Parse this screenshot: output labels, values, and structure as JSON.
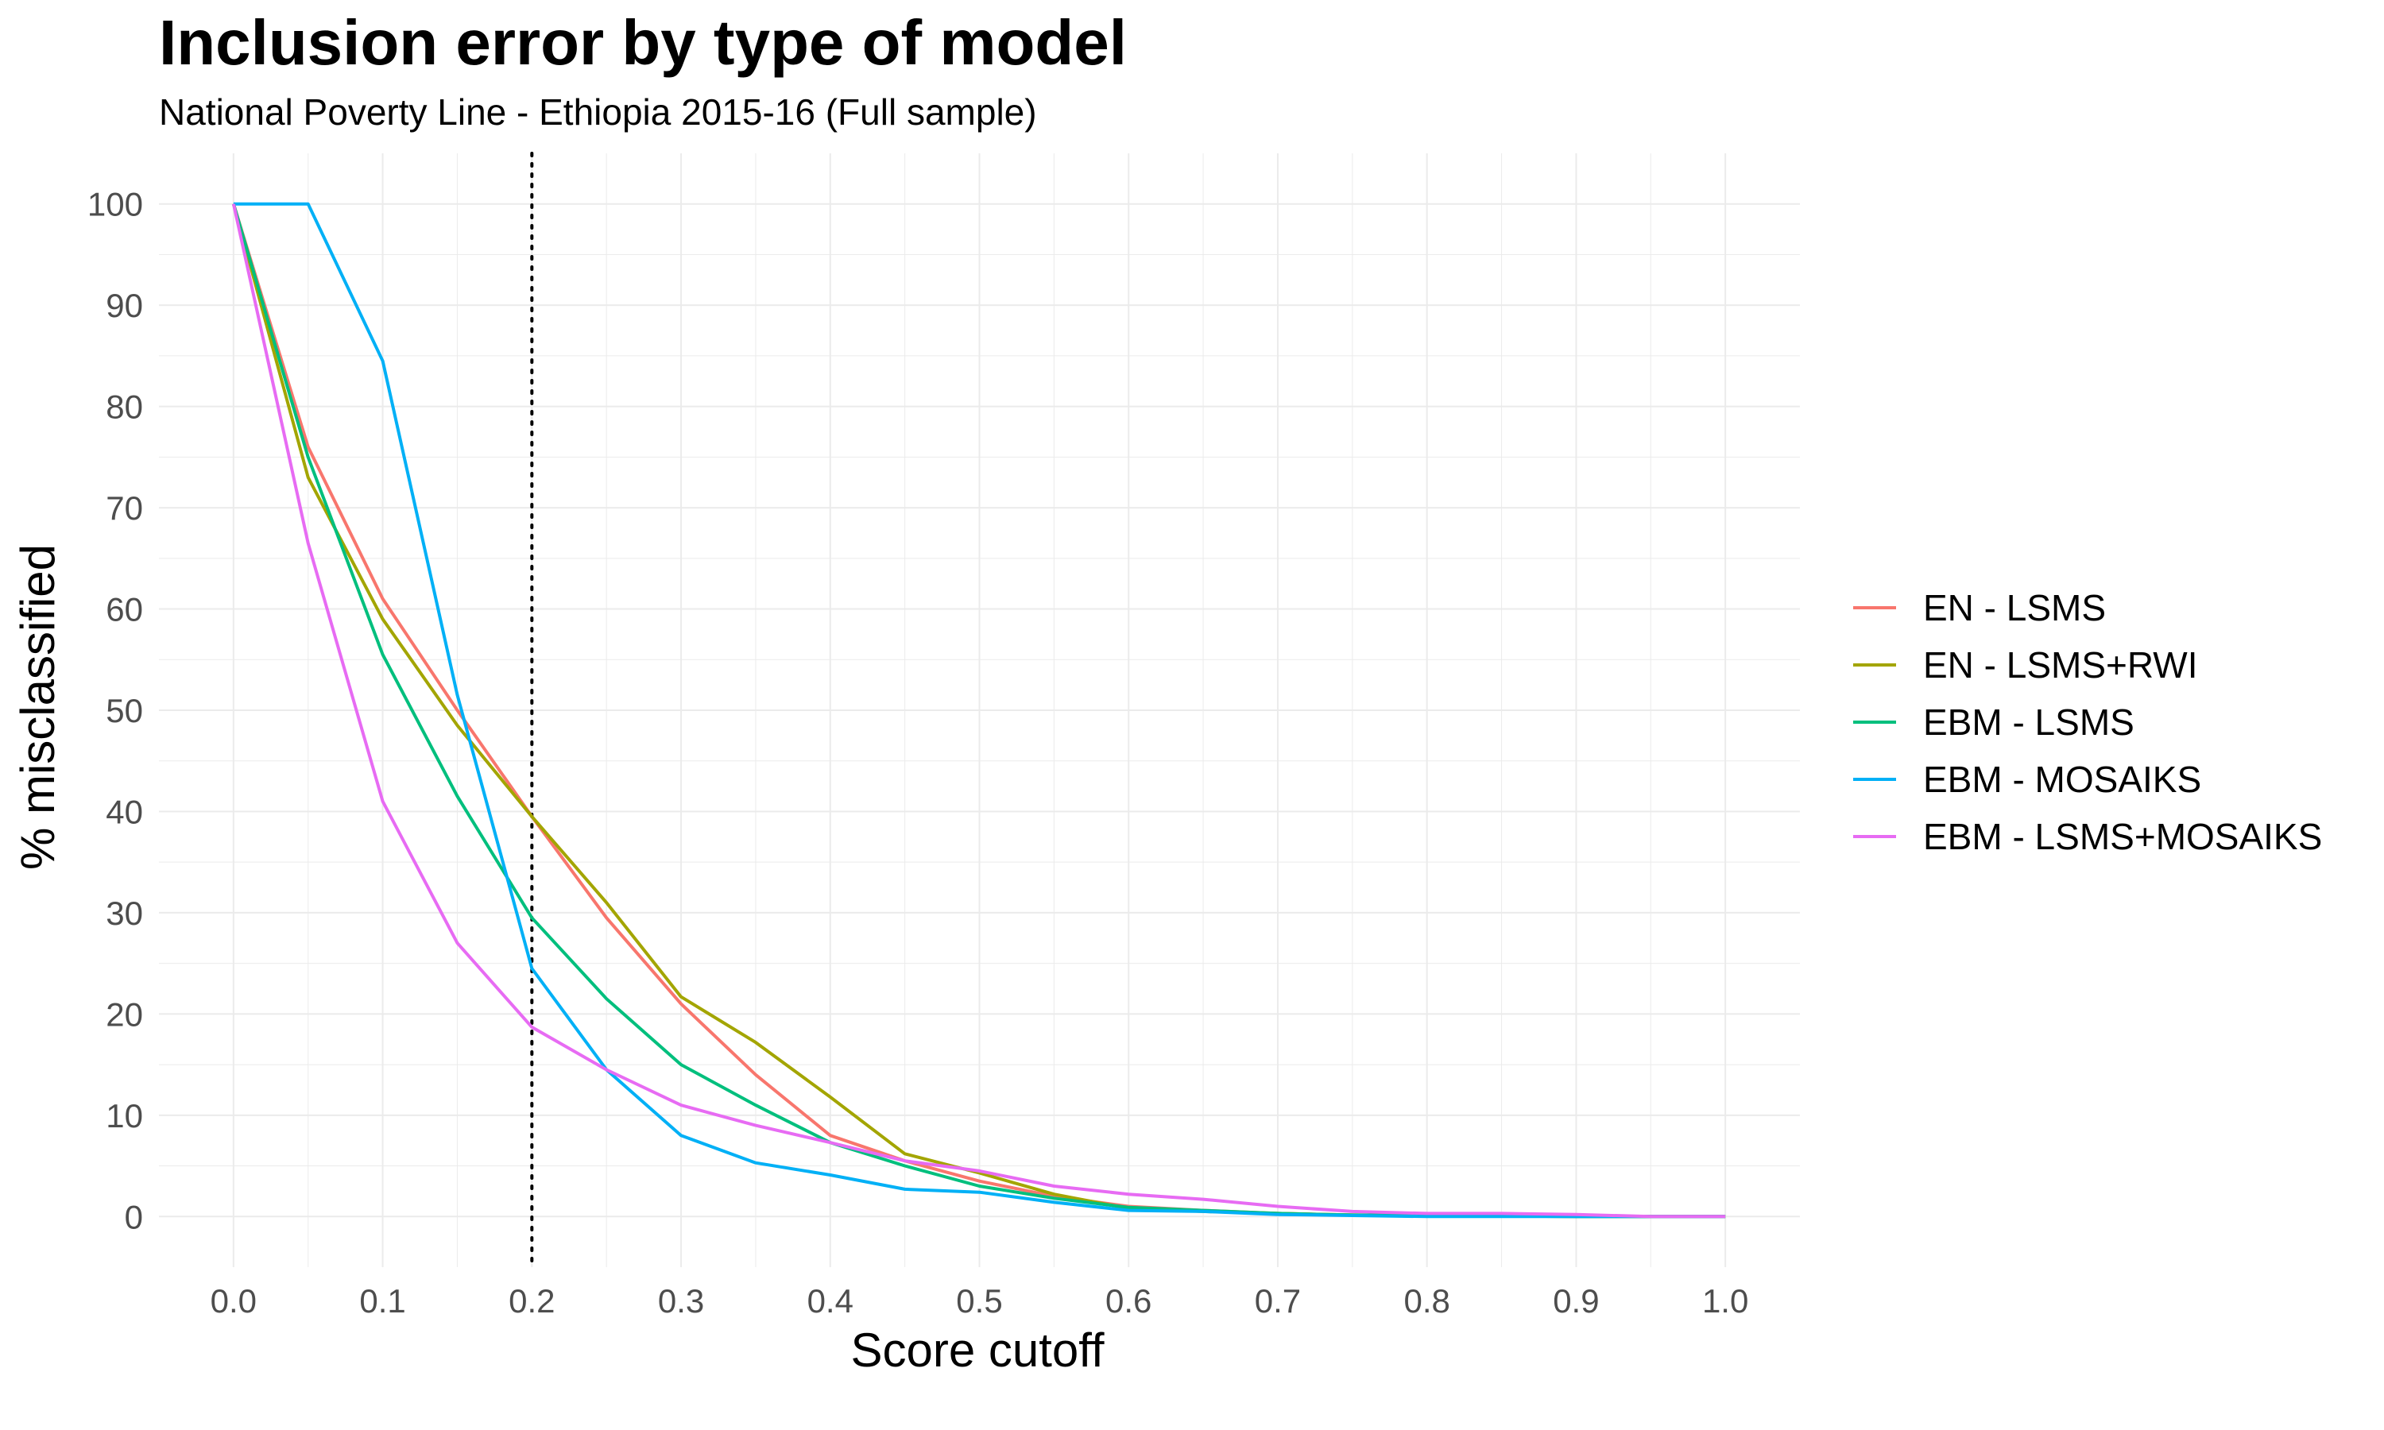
{
  "chart_data": {
    "type": "line",
    "title": "Inclusion error by type of model",
    "subtitle": "National Poverty Line - Ethiopia 2015-16 (Full sample)",
    "xlabel": "Score cutoff",
    "ylabel": "% misclassified",
    "xlim": [
      -0.05,
      1.05
    ],
    "ylim": [
      -5,
      105
    ],
    "x_ticks": [
      "0.0",
      "0.1",
      "0.2",
      "0.3",
      "0.4",
      "0.5",
      "0.6",
      "0.7",
      "0.8",
      "0.9",
      "1.0"
    ],
    "y_ticks": [
      "0",
      "10",
      "20",
      "30",
      "40",
      "50",
      "60",
      "70",
      "80",
      "90",
      "100"
    ],
    "grid": true,
    "legend_position": "right",
    "reference_line": {
      "x": 0.2,
      "style": "dotted"
    },
    "x": [
      0.0,
      0.05,
      0.1,
      0.15,
      0.2,
      0.25,
      0.3,
      0.35,
      0.4,
      0.45,
      0.5,
      0.55,
      0.6,
      0.65,
      0.7,
      0.75,
      0.8,
      0.85,
      0.9,
      0.95,
      1.0
    ],
    "series": [
      {
        "name": "EN - LSMS",
        "color": "#F8766D",
        "values": [
          100,
          76,
          61,
          50,
          39.5,
          29.5,
          21,
          14,
          8,
          5.5,
          3.5,
          2,
          1,
          0.6,
          0.3,
          0.15,
          0.1,
          0.05,
          0,
          0,
          0
        ]
      },
      {
        "name": "EN - LSMS+RWI",
        "color": "#A3A500",
        "values": [
          100,
          73,
          59,
          48.5,
          39.5,
          31,
          21.7,
          17.2,
          11.8,
          6.2,
          4.3,
          2.2,
          0.8,
          0.5,
          0.3,
          0.15,
          0.1,
          0.05,
          0,
          0,
          0
        ]
      },
      {
        "name": "EBM - LSMS",
        "color": "#00BF7D",
        "values": [
          100,
          75,
          55.5,
          41.5,
          29.5,
          21.5,
          15,
          11,
          7.3,
          5,
          3,
          1.8,
          0.9,
          0.6,
          0.3,
          0.15,
          0.1,
          0.05,
          0,
          0,
          0
        ]
      },
      {
        "name": "EBM - MOSAIKS",
        "color": "#00B0F6",
        "values": [
          100,
          100,
          84.5,
          51.5,
          24.5,
          14.5,
          8,
          5.3,
          4.1,
          2.7,
          2.4,
          1.4,
          0.6,
          0.5,
          0.2,
          0.1,
          0,
          0,
          0,
          0,
          0
        ]
      },
      {
        "name": "EBM - LSMS+MOSAIKS",
        "color": "#E76BF3",
        "values": [
          100,
          66.5,
          41,
          27,
          18.7,
          14.5,
          11,
          9,
          7.3,
          5.5,
          4.5,
          3,
          2.2,
          1.7,
          1,
          0.5,
          0.3,
          0.3,
          0.2,
          0,
          0
        ]
      }
    ]
  }
}
